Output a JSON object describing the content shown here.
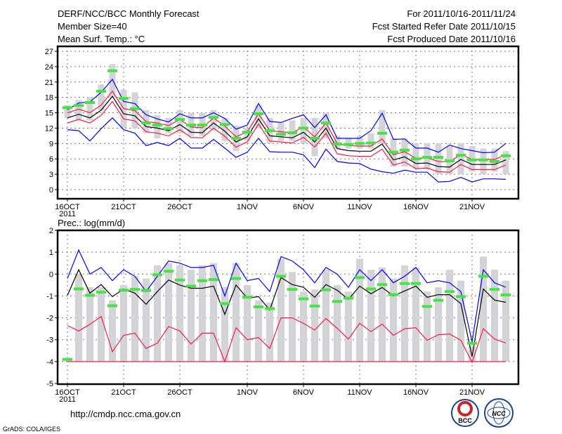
{
  "header": {
    "title": "DERF/NCC/BCC Monthly Forecast",
    "member_size": "Member Size=40",
    "variable": "Mean Surf. Temp.: °C",
    "period": "For 2011/10/16-2011/11/24",
    "started": "Fcst Started Refer Date 2011/10/15",
    "produced": "Fcst Produced Date 2011/10/16"
  },
  "footer": {
    "url": "http://cmdp.ncc.cma.gov.cn",
    "credit": "GrADS: COLA/IGES",
    "logo_left": "BCC",
    "logo_right": "NCC"
  },
  "colors": {
    "obs": "#44e444",
    "box": "#d3d4d8",
    "ext": "#0000ff",
    "pct": "#ff1744",
    "mean": "#000000"
  },
  "chart_data": [
    {
      "type": "line",
      "title": "Mean Surf. Temp.: °C",
      "xlabel": "",
      "ylabel": "°C",
      "ylim": [
        0,
        27
      ],
      "yticks": [
        "0",
        "3",
        "6",
        "9",
        "12",
        "15",
        "18",
        "21",
        "24",
        "27"
      ],
      "xticks": [
        {
          "i": 0,
          "label": "16OCT"
        },
        {
          "i": 5,
          "label": "21OCT"
        },
        {
          "i": 10,
          "label": "26OCT"
        },
        {
          "i": 16,
          "label": "1NOV"
        },
        {
          "i": 21,
          "label": "6NOV"
        },
        {
          "i": 26,
          "label": "11NOV"
        },
        {
          "i": 31,
          "label": "16NOV"
        },
        {
          "i": 36,
          "label": "21NOV"
        }
      ],
      "year_label": "2011",
      "grid": true,
      "days": 40,
      "series": [
        {
          "name": "max",
          "color": "ext",
          "values": [
            15.6,
            16.9,
            17.1,
            19,
            21.5,
            17.2,
            16.8,
            14.6,
            13.8,
            13.2,
            14.8,
            14,
            14,
            15,
            13.9,
            11.8,
            12.6,
            16.8,
            13.3,
            13.1,
            13.9,
            14.6,
            12.1,
            14.6,
            10,
            10,
            10,
            11.5,
            14.9,
            9.8,
            9.9,
            8.1,
            8.1,
            7.3,
            8.7,
            8,
            7.6,
            7.2,
            7.3,
            9
          ]
        },
        {
          "name": "upper",
          "color": "pct",
          "values": [
            15,
            15.7,
            15,
            16.5,
            19.2,
            15.8,
            15.4,
            13.3,
            13,
            12.5,
            13.7,
            12.2,
            12.1,
            14,
            12.4,
            10.3,
            11.3,
            14.8,
            11.5,
            11.3,
            11.1,
            12.2,
            10.3,
            13,
            9,
            8.6,
            8.5,
            8.5,
            9.9,
            6.8,
            7.4,
            6.1,
            6.2,
            5.5,
            5.4,
            6.9,
            5.9,
            5.9,
            5.9,
            6.8
          ]
        },
        {
          "name": "mean",
          "color": "mean",
          "values": [
            14,
            14.7,
            14,
            15.5,
            18.2,
            14.8,
            14.4,
            12.3,
            12,
            11.5,
            12.7,
            11.2,
            11.1,
            13,
            11.4,
            9.3,
            10.3,
            13.8,
            10.5,
            10.3,
            10.1,
            11.2,
            9.3,
            12,
            8,
            7.6,
            7.5,
            7.5,
            8.9,
            5.8,
            6.4,
            5.1,
            5.2,
            4.5,
            4.4,
            5.9,
            4.9,
            4.9,
            4.9,
            5.8
          ]
        },
        {
          "name": "lower",
          "color": "pct",
          "values": [
            13,
            13.7,
            13,
            14.5,
            17.2,
            13.8,
            13.4,
            11.3,
            11,
            10.5,
            11.7,
            10.2,
            10.1,
            12,
            10.4,
            8.3,
            9.3,
            12.8,
            9.5,
            9.3,
            9.1,
            10.2,
            8.3,
            11,
            7,
            6.6,
            6.5,
            6.5,
            7.9,
            4.8,
            5.4,
            4.1,
            4.2,
            3.5,
            3.4,
            4.9,
            3.9,
            3.9,
            3.9,
            4.8
          ]
        },
        {
          "name": "min",
          "color": "ext",
          "values": [
            11.7,
            11.5,
            9.5,
            11.9,
            14,
            11.7,
            11,
            8.6,
            9.2,
            8.6,
            10,
            8.1,
            8.1,
            9.8,
            8.1,
            6.3,
            7.3,
            10,
            7.4,
            7.3,
            7.3,
            6.8,
            4.3,
            7.9,
            5.5,
            5.2,
            5.1,
            4,
            3.5,
            3.2,
            3.8,
            3.4,
            3.4,
            1.5,
            1.6,
            2.4,
            1.5,
            2.1,
            2.1,
            2
          ]
        }
      ],
      "box_max": [
        16.5,
        17.5,
        18,
        20.5,
        24.5,
        19.5,
        19,
        15.5,
        14.5,
        14,
        15.5,
        15,
        15,
        15.5,
        14,
        12.5,
        12,
        16.5,
        14,
        13,
        13.5,
        14,
        14,
        15,
        10.5,
        10,
        10.5,
        11,
        15.5,
        10,
        10,
        9,
        9,
        9,
        8.5,
        9,
        8.5,
        8,
        8,
        7.5
      ],
      "box_min": [
        14,
        13.5,
        13.5,
        15.5,
        18,
        12,
        12,
        11,
        10,
        11,
        11,
        10.5,
        10.5,
        11.5,
        9.5,
        7.5,
        9.5,
        12,
        9,
        9.5,
        9.5,
        9,
        6.5,
        10,
        8,
        8,
        8,
        8,
        9,
        4.5,
        4.5,
        4,
        4,
        3,
        3,
        3,
        3.5,
        3,
        3.5,
        3
      ],
      "observed": [
        16,
        16.4,
        17,
        19.2,
        23.2,
        17.8,
        15.8,
        13,
        12.6,
        11.9,
        13.7,
        12.6,
        12.6,
        14.1,
        12.7,
        10,
        11.2,
        14.8,
        11.5,
        10.8,
        11.1,
        12,
        10,
        13,
        8.9,
        8.8,
        9,
        9.1,
        11,
        7.3,
        7.7,
        6,
        6.3,
        6.3,
        5.6,
        6.7,
        5.8,
        5.8,
        5.5,
        6.6
      ]
    },
    {
      "type": "line",
      "title": "Prec.: log(mm/d)",
      "xlabel": "",
      "ylabel": "log(mm/d)",
      "ylim": [
        -5,
        2
      ],
      "yticks": [
        "-5",
        "-4",
        "-3",
        "-2",
        "-1",
        "0",
        "1",
        "2"
      ],
      "xticks": [
        {
          "i": 0,
          "label": "16OCT"
        },
        {
          "i": 5,
          "label": "21OCT"
        },
        {
          "i": 10,
          "label": "26OCT"
        },
        {
          "i": 16,
          "label": "1NOV"
        },
        {
          "i": 21,
          "label": "6NOV"
        },
        {
          "i": 26,
          "label": "11NOV"
        },
        {
          "i": 31,
          "label": "16NOV"
        },
        {
          "i": 36,
          "label": "21NOV"
        }
      ],
      "year_label": "2011",
      "grid": true,
      "days": 40,
      "series": [
        {
          "name": "max",
          "color": "ext",
          "values": [
            -0.2,
            1.1,
            0,
            0.3,
            -0.3,
            0.2,
            -0.1,
            -0.8,
            -0.1,
            0.6,
            0.5,
            0.3,
            0.3,
            0.4,
            -1.0,
            0.5,
            -0.3,
            -0.2,
            -0.8,
            0.8,
            0.6,
            0.2,
            -0.4,
            0.3,
            0,
            -0.6,
            0.2,
            -0.3,
            0.2,
            -0.4,
            -0.1,
            0.3,
            -0.4,
            -0.3,
            -0.4,
            -0.8,
            -3.1,
            0.2,
            -0.4,
            -0.6
          ]
        },
        {
          "name": "mean",
          "color": "mean",
          "values": [
            -0.97,
            0.2,
            -0.87,
            -0.48,
            -1.03,
            -0.68,
            -0.87,
            -1.38,
            -0.8,
            -0.27,
            -0.5,
            -0.65,
            -0.65,
            -0.55,
            -1.84,
            -0.5,
            -1.1,
            -1.03,
            -1.64,
            -0.16,
            -0.48,
            -0.6,
            -1.06,
            -0.48,
            -0.74,
            -1.16,
            -0.55,
            -0.9,
            -0.61,
            -1.0,
            -0.77,
            -0.55,
            -1.06,
            -0.94,
            -0.94,
            -1.35,
            -3.77,
            -0.68,
            -1.19,
            -1.29
          ]
        },
        {
          "name": "lower",
          "color": "pct",
          "values": [
            -2.35,
            -2.6,
            -2.3,
            -1.94,
            -3.55,
            -2.8,
            -2.7,
            -3.4,
            -3.16,
            -2.4,
            -2.6,
            -3.2,
            -2.7,
            -2.7,
            -4,
            -2.45,
            -3.0,
            -2.9,
            -3.4,
            -2.0,
            -2.0,
            -2.25,
            -2.56,
            -2.03,
            -2.48,
            -2.97,
            -2.25,
            -2.63,
            -2.29,
            -2.8,
            -2.5,
            -2.45,
            -3.03,
            -2.77,
            -2.74,
            -3.03,
            -4.03,
            -2.5,
            -2.97,
            -3.15
          ]
        },
        {
          "name": "floor",
          "color": "pct",
          "values": [
            -4,
            -4,
            -4,
            -4,
            -4,
            -4,
            -4,
            -4,
            -4,
            -4,
            -4,
            -4,
            -4,
            -4,
            -4,
            -4,
            -4,
            -4,
            -4,
            -4,
            -4,
            -4,
            -4,
            -4,
            -4,
            -4,
            -4,
            -4,
            -4,
            -4,
            -4,
            -4,
            -4,
            -4,
            -4,
            -4,
            -4,
            -4,
            -4,
            -4
          ]
        }
      ],
      "box_max": [
        null,
        0,
        -0.6,
        -0.6,
        -1.2,
        -0.5,
        -0.1,
        -0.2,
        0.4,
        0.5,
        0.4,
        0.2,
        0.4,
        0.5,
        -0.6,
        0.5,
        -0.5,
        -1.2,
        -1.3,
        0.7,
        0.1,
        -0.8,
        -0.7,
        0.2,
        -0.5,
        -0.8,
        0.7,
        0.2,
        0.3,
        -0.2,
        0.4,
        0.3,
        -0.8,
        -0.6,
        0.2,
        -0.3,
        -3.3,
        0.8,
        0.2,
        -0.3
      ],
      "box_min": [
        null,
        -4,
        -4,
        -4,
        -4,
        -4,
        -4,
        -4,
        -4,
        -4,
        -4,
        -4,
        -4,
        -4,
        -4,
        -4,
        -4,
        -4,
        -4,
        -4,
        -4,
        -4,
        -4,
        -4,
        -4,
        -4,
        -4,
        -4,
        -4,
        -4,
        -4,
        -4,
        -4,
        -4,
        -4,
        -4,
        -4,
        -4,
        -4,
        -4
      ],
      "observed": [
        -3.9,
        -0.68,
        -0.97,
        -0.83,
        -1.45,
        -0.74,
        -0.7,
        -0.75,
        -0.03,
        0.13,
        -0.27,
        -0.55,
        -0.3,
        -0.25,
        -1.35,
        -0.2,
        -1.06,
        -1.5,
        -1.58,
        -0.1,
        -0.7,
        -1.13,
        -1.46,
        -0.72,
        -1.25,
        -1.1,
        -0.16,
        -0.68,
        -0.48,
        -0.94,
        -0.43,
        -0.43,
        -1.48,
        -1.2,
        -0.8,
        -1.03,
        -3.16,
        -0.1,
        -0.7,
        -0.95
      ]
    }
  ]
}
